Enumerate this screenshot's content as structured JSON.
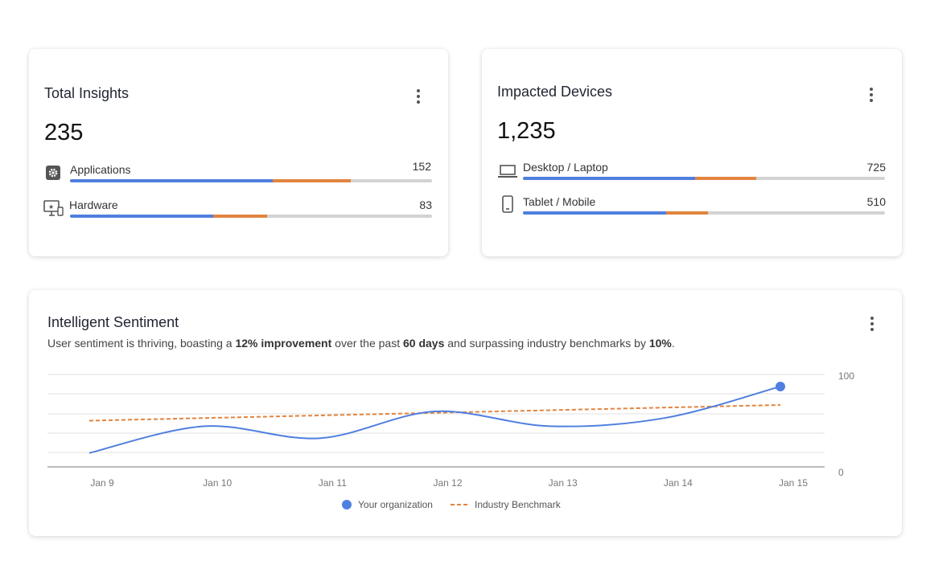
{
  "total_insights": {
    "title": "Total Insights",
    "value": "235",
    "rows": [
      {
        "label": "Applications",
        "value": "152",
        "icon": "gear-icon",
        "blue": 0.56,
        "orange": 0.215
      },
      {
        "label": "Hardware",
        "value": "83",
        "icon": "monitor-device-icon",
        "blue": 0.395,
        "orange": 0.15
      }
    ]
  },
  "impacted_devices": {
    "title": "Impacted Devices",
    "value": "1,235",
    "rows": [
      {
        "label": "Desktop / Laptop",
        "value": "725",
        "icon": "laptop-icon",
        "blue": 0.475,
        "orange": 0.17
      },
      {
        "label": "Tablet / Mobile",
        "value": "510",
        "icon": "tablet-icon",
        "blue": 0.395,
        "orange": 0.115
      }
    ]
  },
  "sentiment": {
    "title": "Intelligent Sentiment",
    "subtitle": {
      "p1": "User sentiment is thriving, boasting a ",
      "b1": "12% improvement",
      "p2": " over the past ",
      "b2": "60 days",
      "p3": " and surpassing industry benchmarks by ",
      "b3": "10%",
      "p4": "."
    }
  },
  "chart_data": {
    "type": "line",
    "categories": [
      "Jan 9",
      "Jan 10",
      "Jan 11",
      "Jan 12",
      "Jan 13",
      "Jan 14",
      "Jan 15"
    ],
    "series": [
      {
        "name": "Your organization",
        "color": "#4f7fdf",
        "values": [
          15,
          44,
          31,
          60,
          44,
          53,
          87
        ]
      },
      {
        "name": "Industry Benchmark",
        "color": "#e2843f",
        "dashed": true,
        "values": [
          50,
          53,
          56,
          59,
          61,
          64,
          67
        ]
      }
    ],
    "ylim": [
      0,
      100
    ],
    "yticks": [
      "0",
      "100"
    ],
    "legend": "bottom",
    "grid": true
  }
}
